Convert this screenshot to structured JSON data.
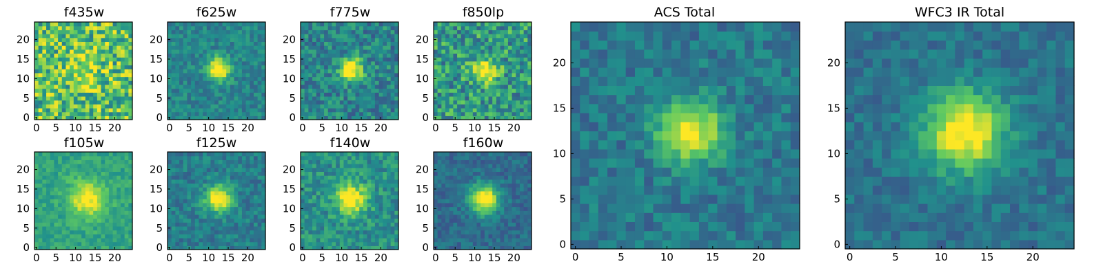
{
  "figure": {
    "colormap": "viridis",
    "colormap_stops": [
      "#440154",
      "#3b528b",
      "#21918c",
      "#5ec962",
      "#fde725"
    ],
    "tick_color": "#000000"
  },
  "chart_data": [
    {
      "type": "heatmap",
      "title": "f435w",
      "grid_size": 25,
      "center": [
        12.5,
        12.5
      ],
      "peak": 0.25,
      "sigma": 3.0,
      "background": 0.7,
      "noise": 0.3,
      "xticks": [
        0,
        5,
        10,
        15,
        20
      ],
      "yticks": [
        0,
        5,
        10,
        15,
        20
      ],
      "xlim": [
        0,
        24
      ],
      "ylim": [
        0,
        24
      ]
    },
    {
      "type": "heatmap",
      "title": "f625w",
      "grid_size": 25,
      "center": [
        12.5,
        12.5
      ],
      "peak": 0.7,
      "sigma": 2.0,
      "background": 0.45,
      "noise": 0.12,
      "xticks": [
        0,
        5,
        10,
        15,
        20
      ],
      "yticks": [
        0,
        5,
        10,
        15,
        20
      ],
      "xlim": [
        0,
        24
      ],
      "ylim": [
        0,
        24
      ]
    },
    {
      "type": "heatmap",
      "title": "f775w",
      "grid_size": 25,
      "center": [
        12.5,
        12.5
      ],
      "peak": 0.7,
      "sigma": 2.0,
      "background": 0.45,
      "noise": 0.18,
      "xticks": [
        0,
        5,
        10,
        15,
        20
      ],
      "yticks": [
        0,
        5,
        10,
        15,
        20
      ],
      "xlim": [
        0,
        24
      ],
      "ylim": [
        0,
        24
      ]
    },
    {
      "type": "heatmap",
      "title": "f850lp",
      "grid_size": 25,
      "center": [
        12.5,
        12.0
      ],
      "peak": 0.45,
      "sigma": 2.2,
      "background": 0.55,
      "noise": 0.25,
      "xticks": [
        0,
        5,
        10,
        15,
        20
      ],
      "yticks": [
        0,
        5,
        10,
        15,
        20
      ],
      "xlim": [
        0,
        24
      ],
      "ylim": [
        0,
        24
      ]
    },
    {
      "type": "heatmap",
      "title": "f105w",
      "grid_size": 25,
      "center": [
        13.0,
        12.5
      ],
      "peak": 0.45,
      "sigma": 3.2,
      "background": 0.58,
      "noise": 0.1,
      "xticks": [
        0,
        5,
        10,
        15,
        20
      ],
      "yticks": [
        0,
        5,
        10,
        15,
        20
      ],
      "xlim": [
        0,
        24
      ],
      "ylim": [
        0,
        24
      ]
    },
    {
      "type": "heatmap",
      "title": "f125w",
      "grid_size": 25,
      "center": [
        12.5,
        12.5
      ],
      "peak": 0.65,
      "sigma": 2.4,
      "background": 0.42,
      "noise": 0.12,
      "xticks": [
        0,
        5,
        10,
        15,
        20
      ],
      "yticks": [
        0,
        5,
        10,
        15,
        20
      ],
      "xlim": [
        0,
        24
      ],
      "ylim": [
        0,
        24
      ]
    },
    {
      "type": "heatmap",
      "title": "f140w",
      "grid_size": 25,
      "center": [
        12.5,
        12.5
      ],
      "peak": 0.55,
      "sigma": 2.8,
      "background": 0.5,
      "noise": 0.15,
      "xticks": [
        0,
        5,
        10,
        15,
        20
      ],
      "yticks": [
        0,
        5,
        10,
        15,
        20
      ],
      "xlim": [
        0,
        24
      ],
      "ylim": [
        0,
        24
      ]
    },
    {
      "type": "heatmap",
      "title": "f160w",
      "grid_size": 25,
      "center": [
        12.5,
        12.5
      ],
      "peak": 0.75,
      "sigma": 2.6,
      "background": 0.35,
      "noise": 0.1,
      "xticks": [
        0,
        5,
        10,
        15,
        20
      ],
      "yticks": [
        0,
        5,
        10,
        15,
        20
      ],
      "xlim": [
        0,
        24
      ],
      "ylim": [
        0,
        24
      ]
    },
    {
      "type": "heatmap",
      "title": "ACS Total",
      "grid_size": 25,
      "center": [
        12.5,
        12.5
      ],
      "peak": 0.65,
      "sigma": 2.4,
      "background": 0.4,
      "noise": 0.12,
      "xticks": [
        0,
        5,
        10,
        15,
        20
      ],
      "yticks": [
        0,
        5,
        10,
        15,
        20
      ],
      "xlim": [
        0,
        24
      ],
      "ylim": [
        0,
        24
      ]
    },
    {
      "type": "heatmap",
      "title": "WFC3 IR Total",
      "grid_size": 25,
      "center": [
        12.5,
        12.5
      ],
      "peak": 0.7,
      "sigma": 3.0,
      "background": 0.38,
      "noise": 0.1,
      "xticks": [
        0,
        5,
        10,
        15,
        20
      ],
      "yticks": [
        0,
        5,
        10,
        15,
        20
      ],
      "xlim": [
        0,
        24
      ],
      "ylim": [
        0,
        24
      ]
    }
  ]
}
